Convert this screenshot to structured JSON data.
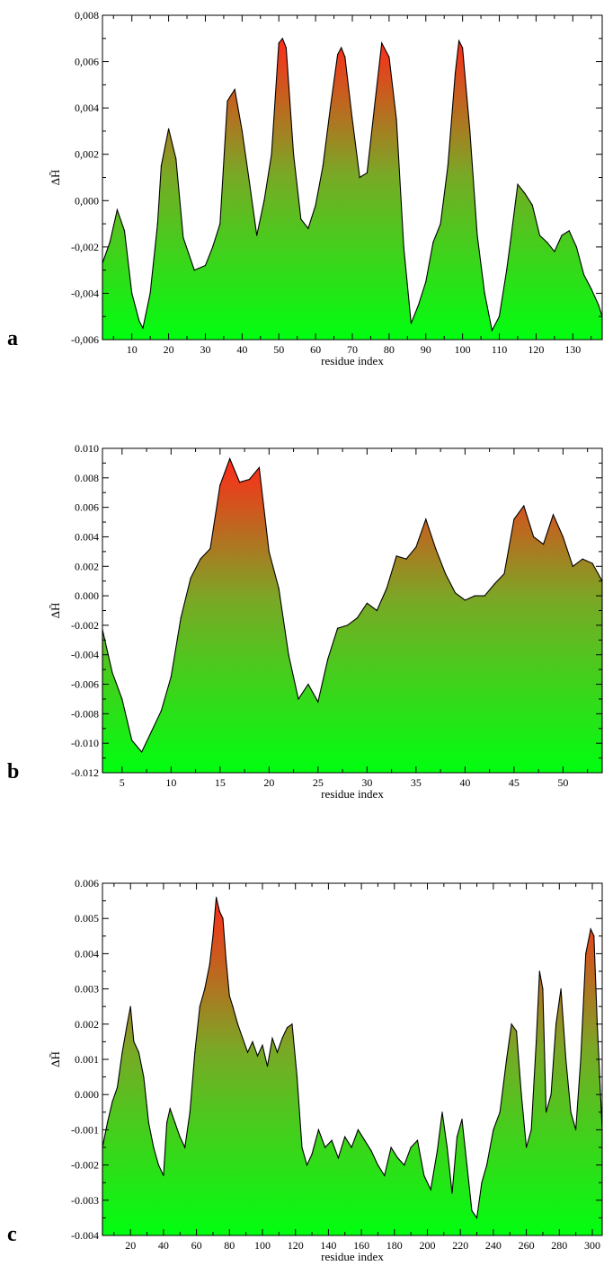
{
  "chart_data": [
    {
      "type": "area",
      "panel_label": "a",
      "xlabel": "residue index",
      "ylabel": "ΔH̃",
      "xlim": [
        2,
        138
      ],
      "ylim": [
        -0.006,
        0.008
      ],
      "x_ticks": [
        10,
        20,
        30,
        40,
        50,
        60,
        70,
        80,
        90,
        100,
        110,
        120,
        130
      ],
      "y_ticks": [
        -0.006,
        -0.004,
        -0.002,
        0.0,
        0.002,
        0.004,
        0.006,
        0.008
      ],
      "y_tick_labels": [
        "-0,006",
        "-0,004",
        "-0,002",
        "0,000",
        "0,002",
        "0,004",
        "0,006",
        "0,008"
      ],
      "fill_gradient": [
        "#ff2a1a",
        "#00ff10"
      ],
      "x": [
        2,
        4,
        6,
        8,
        10,
        12,
        13,
        15,
        17,
        18,
        20,
        22,
        24,
        27,
        30,
        32,
        34,
        36,
        38,
        40,
        42,
        44,
        46,
        48,
        50,
        51,
        52,
        54,
        56,
        58,
        60,
        62,
        64,
        66,
        67,
        68,
        70,
        72,
        74,
        76,
        78,
        80,
        82,
        84,
        86,
        88,
        90,
        92,
        94,
        96,
        98,
        99,
        100,
        102,
        104,
        106,
        108,
        110,
        112,
        113,
        115,
        117,
        119,
        121,
        123,
        125,
        127,
        129,
        131,
        133,
        135,
        137,
        138
      ],
      "y": [
        -0.0027,
        -0.0018,
        -0.0004,
        -0.0013,
        -0.004,
        -0.0052,
        -0.0055,
        -0.004,
        -0.001,
        0.0015,
        0.0031,
        0.0018,
        -0.0016,
        -0.003,
        -0.0028,
        -0.002,
        -0.001,
        0.0043,
        0.0048,
        0.003,
        0.0008,
        -0.0015,
        0.0,
        0.002,
        0.0068,
        0.007,
        0.0066,
        0.002,
        -0.0008,
        -0.0012,
        -0.0002,
        0.0015,
        0.004,
        0.0063,
        0.0066,
        0.0062,
        0.0035,
        0.001,
        0.0012,
        0.004,
        0.0068,
        0.0062,
        0.0035,
        -0.002,
        -0.0053,
        -0.0045,
        -0.0035,
        -0.0018,
        -0.001,
        0.0015,
        0.0055,
        0.0069,
        0.0066,
        0.003,
        -0.0015,
        -0.004,
        -0.0056,
        -0.005,
        -0.003,
        -0.0018,
        0.0007,
        0.0003,
        -0.0002,
        -0.0015,
        -0.0018,
        -0.0022,
        -0.0015,
        -0.0013,
        -0.002,
        -0.0032,
        -0.0038,
        -0.0045,
        -0.005
      ]
    },
    {
      "type": "area",
      "panel_label": "b",
      "xlabel": "residue index",
      "ylabel": "ΔH̃",
      "xlim": [
        3,
        54
      ],
      "ylim": [
        -0.012,
        0.01
      ],
      "x_ticks": [
        5,
        10,
        15,
        20,
        25,
        30,
        35,
        40,
        45,
        50
      ],
      "y_ticks": [
        -0.012,
        -0.01,
        -0.008,
        -0.006,
        -0.004,
        -0.002,
        0.0,
        0.002,
        0.004,
        0.006,
        0.008,
        0.01
      ],
      "y_tick_labels": [
        "-0.012",
        "-0.010",
        "-0.008",
        "-0.006",
        "-0.004",
        "-0.002",
        "0.000",
        "0.002",
        "0.004",
        "0.006",
        "0.008",
        "0.010"
      ],
      "fill_gradient": [
        "#ff2a1a",
        "#00ff10"
      ],
      "x": [
        3,
        4,
        5,
        6,
        7,
        8,
        9,
        10,
        11,
        12,
        13,
        14,
        15,
        16,
        17,
        18,
        19,
        20,
        21,
        22,
        23,
        24,
        25,
        26,
        27,
        28,
        29,
        30,
        31,
        32,
        33,
        34,
        35,
        36,
        37,
        38,
        39,
        40,
        41,
        42,
        43,
        44,
        45,
        46,
        47,
        48,
        49,
        50,
        51,
        52,
        53,
        54
      ],
      "y": [
        -0.0023,
        -0.0052,
        -0.007,
        -0.0098,
        -0.0106,
        -0.0092,
        -0.0078,
        -0.0055,
        -0.0015,
        0.0012,
        0.0025,
        0.0032,
        0.0075,
        0.0093,
        0.0077,
        0.0079,
        0.0087,
        0.003,
        0.0005,
        -0.004,
        -0.007,
        -0.006,
        -0.0072,
        -0.0043,
        -0.0022,
        -0.002,
        -0.0015,
        -0.0005,
        -0.001,
        0.0005,
        0.0027,
        0.0025,
        0.0033,
        0.0052,
        0.0032,
        0.0015,
        0.0002,
        -0.0003,
        0.0,
        0.0,
        0.0008,
        0.0015,
        0.0052,
        0.0061,
        0.004,
        0.0035,
        0.0055,
        0.004,
        0.002,
        0.0025,
        0.0022,
        0.001
      ]
    },
    {
      "type": "area",
      "panel_label": "c",
      "xlabel": "residue index",
      "ylabel": "ΔH̃",
      "xlim": [
        3,
        306
      ],
      "ylim": [
        -0.004,
        0.006
      ],
      "x_ticks": [
        20,
        40,
        60,
        80,
        100,
        120,
        140,
        160,
        180,
        200,
        220,
        240,
        260,
        280,
        300
      ],
      "y_ticks": [
        -0.004,
        -0.003,
        -0.002,
        -0.001,
        0.0,
        0.001,
        0.002,
        0.003,
        0.004,
        0.005,
        0.006
      ],
      "y_tick_labels": [
        "-0.004",
        "-0.003",
        "-0.002",
        "-0.001",
        "0.000",
        "0.001",
        "0.002",
        "0.003",
        "0.004",
        "0.005",
        "0.006"
      ],
      "fill_gradient": [
        "#ff2a1a",
        "#00ff10"
      ],
      "x": [
        3,
        6,
        9,
        12,
        15,
        18,
        20,
        22,
        25,
        28,
        31,
        34,
        37,
        40,
        42,
        44,
        47,
        50,
        53,
        56,
        59,
        62,
        65,
        68,
        70,
        72,
        74,
        76,
        78,
        80,
        82,
        85,
        88,
        91,
        94,
        97,
        100,
        103,
        106,
        109,
        112,
        115,
        118,
        121,
        124,
        127,
        130,
        134,
        138,
        142,
        146,
        150,
        154,
        158,
        162,
        166,
        170,
        174,
        178,
        182,
        186,
        190,
        194,
        198,
        202,
        206,
        209,
        212,
        215,
        218,
        221,
        224,
        227,
        230,
        233,
        236,
        240,
        244,
        248,
        251,
        254,
        257,
        260,
        263,
        266,
        268,
        270,
        272,
        275,
        278,
        281,
        284,
        287,
        290,
        293,
        296,
        299,
        301,
        303,
        306
      ],
      "y": [
        -0.0015,
        -0.0008,
        -0.0002,
        0.0002,
        0.0012,
        0.002,
        0.0025,
        0.0015,
        0.0012,
        0.0005,
        -0.0008,
        -0.0015,
        -0.002,
        -0.0023,
        -0.0008,
        -0.0004,
        -0.0008,
        -0.0012,
        -0.0015,
        -0.0005,
        0.0012,
        0.0025,
        0.003,
        0.0037,
        0.0045,
        0.0056,
        0.0052,
        0.005,
        0.0038,
        0.0028,
        0.0025,
        0.002,
        0.0016,
        0.0012,
        0.0015,
        0.0011,
        0.0014,
        0.0008,
        0.0016,
        0.0012,
        0.0016,
        0.0019,
        0.002,
        0.0005,
        -0.0015,
        -0.002,
        -0.0017,
        -0.001,
        -0.0015,
        -0.0013,
        -0.0018,
        -0.0012,
        -0.0015,
        -0.001,
        -0.0013,
        -0.0016,
        -0.002,
        -0.0023,
        -0.0015,
        -0.0018,
        -0.002,
        -0.0015,
        -0.0013,
        -0.0023,
        -0.0027,
        -0.0016,
        -0.0005,
        -0.0015,
        -0.0028,
        -0.0012,
        -0.0007,
        -0.002,
        -0.0033,
        -0.0035,
        -0.0025,
        -0.002,
        -0.001,
        -0.0005,
        0.001,
        0.002,
        0.0018,
        0.0,
        -0.0015,
        -0.001,
        0.0015,
        0.0035,
        0.003,
        -0.0005,
        0.0,
        0.002,
        0.003,
        0.001,
        -0.0005,
        -0.001,
        0.001,
        0.004,
        0.0047,
        0.0045,
        0.002,
        -0.001
      ]
    }
  ]
}
